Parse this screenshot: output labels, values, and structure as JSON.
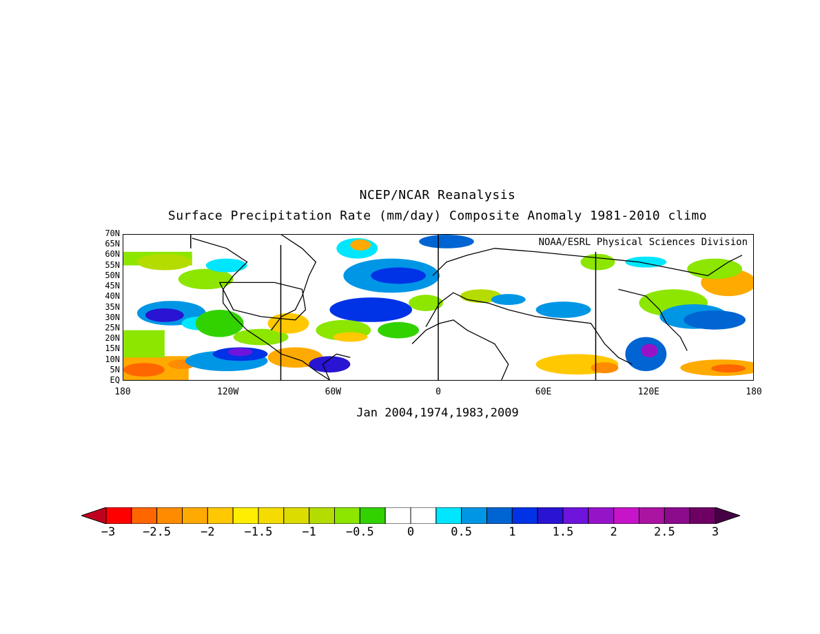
{
  "title": "NCEP/NCAR Reanalysis",
  "subtitle": "Surface Precipitation Rate (mm/day) Composite Anomaly 1981-2010 climo",
  "credit": "NOAA/ESRL Physical Sciences Division",
  "composite_label": "Jan 2004,1974,1983,2009",
  "y_ticks": [
    "70N",
    "65N",
    "60N",
    "55N",
    "50N",
    "45N",
    "40N",
    "35N",
    "30N",
    "25N",
    "20N",
    "15N",
    "10N",
    "5N",
    "EQ"
  ],
  "x_ticks": [
    "180",
    "120W",
    "60W",
    "0",
    "60E",
    "120E",
    "180"
  ],
  "colorbar": {
    "labels": [
      "-3",
      "-2.5",
      "-2",
      "-1.5",
      "-1",
      "-0.5",
      "0",
      "0.5",
      "1",
      "1.5",
      "2",
      "2.5",
      "3"
    ],
    "colors": [
      "#c0001f",
      "#ff0000",
      "#ff6600",
      "#ff8c00",
      "#ffaa00",
      "#ffc800",
      "#ffee00",
      "#f5dc00",
      "#dcdc00",
      "#b4dc00",
      "#8ce600",
      "#32d200",
      "#ffffff",
      "#ffffff",
      "#00e6ff",
      "#0096e6",
      "#0064d2",
      "#0032e6",
      "#2814d2",
      "#6e14dc",
      "#9614c8",
      "#c814c8",
      "#aa14a0",
      "#8c0a8c",
      "#6e0064",
      "#460046"
    ]
  }
}
